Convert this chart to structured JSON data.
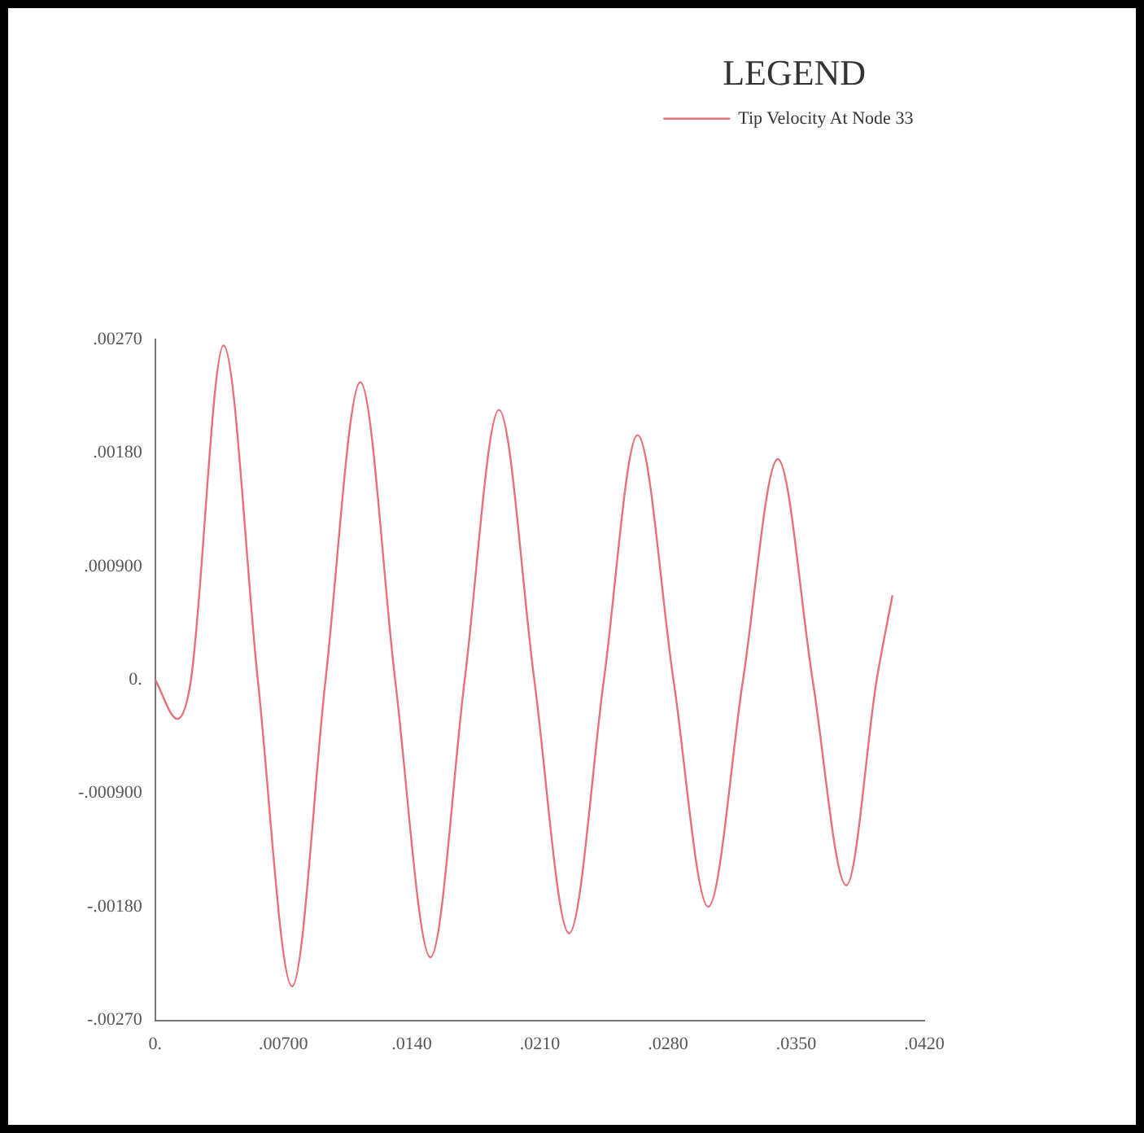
{
  "chart_data": {
    "type": "line",
    "legend_title": "LEGEND",
    "legend": "top right",
    "grid": false,
    "marker": "none",
    "line_style": "solid",
    "xlim": [
      0,
      0.042
    ],
    "ylim": [
      -0.0027,
      0.0027
    ],
    "xticks": [
      {
        "value": 0,
        "label": "0."
      },
      {
        "value": 0.007,
        "label": ".00700"
      },
      {
        "value": 0.014,
        "label": ".0140"
      },
      {
        "value": 0.021,
        "label": ".0210"
      },
      {
        "value": 0.028,
        "label": ".0280"
      },
      {
        "value": 0.035,
        "label": ".0350"
      },
      {
        "value": 0.042,
        "label": ".0420"
      }
    ],
    "yticks": [
      {
        "value": -0.0027,
        "label": "-.00270"
      },
      {
        "value": -0.0018,
        "label": "-.00180"
      },
      {
        "value": -0.0009,
        "label": "-.000900"
      },
      {
        "value": 0,
        "label": "0."
      },
      {
        "value": 0.0009,
        "label": ".000900"
      },
      {
        "value": 0.0018,
        "label": ".00180"
      },
      {
        "value": 0.0027,
        "label": ".00270"
      }
    ],
    "series": [
      {
        "name": "Tip Velocity At Node 33",
        "color": "#e8707a",
        "x": [
          0,
          0.00121,
          0.00195,
          0.00373,
          0.0056,
          0.00747,
          0.0093,
          0.0112,
          0.0131,
          0.01503,
          0.0169,
          0.01877,
          0.0207,
          0.0226,
          0.0245,
          0.02634,
          0.0283,
          0.0302,
          0.0321,
          0.034,
          0.0359,
          0.03774,
          0.0394,
          0.04026
        ],
        "values": [
          0,
          -0.00031,
          0,
          0.00265,
          0,
          -0.00243,
          0,
          0.00236,
          0,
          -0.0022,
          0,
          0.00214,
          0,
          -0.00201,
          0,
          0.00194,
          0,
          -0.0018,
          0,
          0.00175,
          0,
          -0.00163,
          0,
          0.00067
        ]
      }
    ]
  }
}
